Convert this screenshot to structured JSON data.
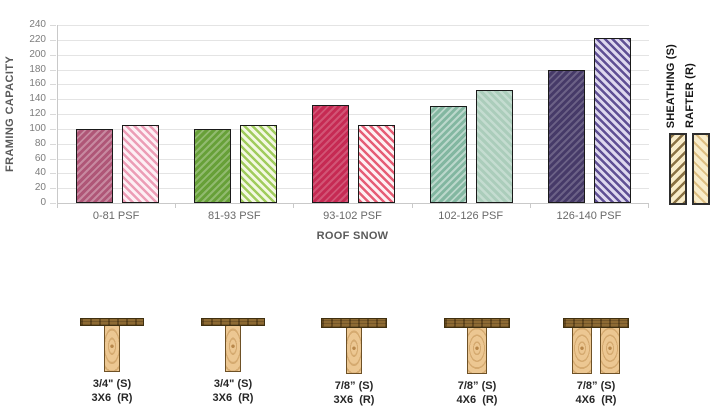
{
  "chart_data": {
    "type": "bar",
    "title": "",
    "xlabel": "ROOF SNOW",
    "ylabel": "FRAMING CAPACITY",
    "ylim": [
      0,
      240
    ],
    "ytick_step": 20,
    "grid": true,
    "legend_position": "right",
    "categories": [
      "0-81 PSF",
      "81-93 PSF",
      "93-102 PSF",
      "102-126 PSF",
      "126-140 PSF"
    ],
    "series": [
      {
        "name": "SHEATHING (S)",
        "values": [
          100,
          100,
          132,
          131,
          179
        ]
      },
      {
        "name": "RAFTER (R)",
        "values": [
          105,
          105,
          105,
          152,
          222
        ]
      }
    ],
    "pair_colors": [
      {
        "s_base": "#af5677",
        "s_stripe": "rgba(255,255,255,0.30)",
        "r_bg": "#fdeff4",
        "r_stripe": "#ec9db6"
      },
      {
        "s_base": "#67a038",
        "s_stripe": "rgba(255,255,255,0.28)",
        "r_bg": "#f3f8e2",
        "r_stripe": "#a0cc5d"
      },
      {
        "s_base": "#c62a53",
        "s_stripe": "rgba(255,255,255,0.20)",
        "r_bg": "#fdf1f3",
        "r_stripe": "#e65e76"
      },
      {
        "s_base": "#83b7a1",
        "s_stripe": "rgba(255,255,255,0.45)",
        "r_bg": "#abcdbb",
        "r_stripe": "rgba(255,255,255,0.30)"
      },
      {
        "s_base": "#463a68",
        "s_stripe": "rgba(255,255,255,0.20)",
        "r_bg": "#ded8ee",
        "r_stripe": "#5f4f94"
      }
    ],
    "legend_swatch": {
      "bg": "#f8ecca",
      "sheathing_line": "#8a7244",
      "rafter_line": "#ddbe82"
    }
  },
  "wood_sections": {
    "items": [
      {
        "sheathing_label": "3/4\" (S)",
        "rafter_label": "3X6  (R)",
        "sheathing_thickness": "3/4",
        "rafter_size": "3X6",
        "rafter_count": 1
      },
      {
        "sheathing_label": "3/4\" (S)",
        "rafter_label": "3X6  (R)",
        "sheathing_thickness": "3/4",
        "rafter_size": "3X6",
        "rafter_count": 1
      },
      {
        "sheathing_label": "7/8” (S)",
        "rafter_label": "3X6  (R)",
        "sheathing_thickness": "7/8",
        "rafter_size": "3X6",
        "rafter_count": 1
      },
      {
        "sheathing_label": "7/8” (S)",
        "rafter_label": "4X6  (R)",
        "sheathing_thickness": "7/8",
        "rafter_size": "4X6",
        "rafter_count": 1
      },
      {
        "sheathing_label": "7/8” (S)",
        "rafter_label": "4X6  (R)",
        "sheathing_thickness": "7/8",
        "rafter_size": "4X6",
        "rafter_count": 2
      }
    ],
    "colors": {
      "plank": "#8d6a33",
      "lumber": "#ecc792",
      "grain": "#b8874a"
    }
  }
}
